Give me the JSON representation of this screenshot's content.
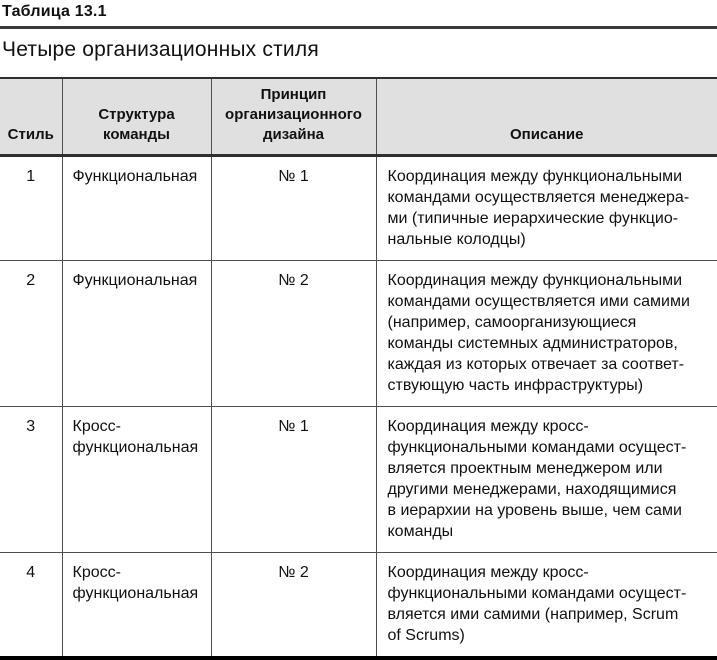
{
  "page": {
    "table_label": "Таблица 13.1",
    "title": "Четыре организационных стиля"
  },
  "table": {
    "headers": {
      "style": "Стиль",
      "structure": "Структура\nкоманды",
      "principle": "Принцип\nорганизационного\nдизайна",
      "description": "Описание"
    },
    "rows": [
      {
        "style": "1",
        "structure": "Функциональная",
        "principle": "№ 1",
        "description": "Координация между функциональными\nкомандами осуществляется менеджера-\nми (типичные иерархические функцио-\nнальные колодцы)"
      },
      {
        "style": "2",
        "structure": "Функциональная",
        "principle": "№ 2",
        "description": "Координация между функциональными\nкомандами осуществляется ими самими\n(например, самоорганизующиеся\nкоманды системных администраторов,\nкаждая из которых отвечает за соответ-\nствующую часть инфраструктуры)"
      },
      {
        "style": "3",
        "structure": "Кросс-\nфункциональная",
        "principle": "№ 1",
        "description": "Координация между кросс-\nфункциональными командами осущест-\nвляется проектным менеджером или\nдругими менеджерами, находящимися\nв иерархии на уровень выше, чем сами\nкоманды"
      },
      {
        "style": "4",
        "structure": "Кросс-\nфункциональная",
        "principle": "№ 2",
        "description": "Координация между кросс-\nфункциональными командами осущест-\nвляется ими самими (например, Scrum\nof Scrums)"
      }
    ]
  }
}
